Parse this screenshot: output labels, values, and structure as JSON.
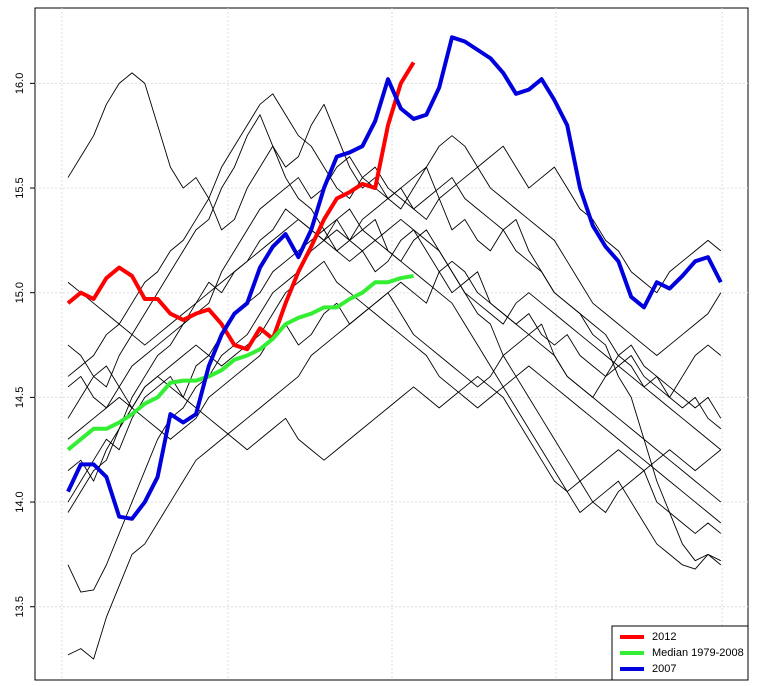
{
  "chart_data": {
    "type": "line",
    "ylim": [
      13.15,
      16.36
    ],
    "yticks": [
      13.5,
      {
        "value": 14,
        "label": "14.0"
      },
      14.5,
      {
        "value": 15,
        "label": "15.0"
      },
      15.5,
      {
        "value": 16,
        "label": "16.0"
      }
    ],
    "grid": true,
    "legend": "bottom-right",
    "series": [
      {
        "color": "#000000",
        "values": [
          15.55,
          15.65,
          15.75,
          15.9,
          16.0,
          16.05,
          16.0,
          15.8,
          15.6,
          15.5,
          15.55,
          15.45,
          15.3,
          15.35,
          15.5,
          15.6,
          15.7,
          15.55,
          15.45,
          15.4,
          15.3,
          15.35,
          15.25,
          15.2,
          15.1,
          15.15,
          15.25,
          15.3,
          15.2,
          15.1,
          15.0,
          15.05,
          15.1,
          14.95,
          14.9,
          14.85,
          14.9,
          14.8,
          14.75,
          14.8,
          14.7,
          14.65,
          14.6,
          14.7,
          14.65,
          14.55,
          14.6,
          14.5,
          14.45,
          14.5,
          14.4,
          14.35
        ]
      },
      {
        "color": "#000000",
        "values": [
          13.27,
          13.3,
          13.25,
          13.45,
          13.6,
          13.75,
          13.8,
          13.9,
          14.0,
          14.1,
          14.2,
          14.25,
          14.3,
          14.35,
          14.4,
          14.45,
          14.5,
          14.55,
          14.6,
          14.7,
          14.75,
          14.8,
          14.85,
          14.9,
          14.95,
          15.0,
          15.05,
          15.0,
          14.95,
          15.1,
          15.15,
          15.1,
          15.0,
          14.95,
          14.9,
          14.85,
          14.8,
          14.75,
          14.7,
          14.6,
          14.55,
          14.5,
          14.45,
          14.4,
          14.35,
          14.3,
          14.25,
          14.2,
          14.15,
          14.1,
          14.05,
          14.0
        ]
      },
      {
        "color": "#000000",
        "values": [
          13.7,
          13.57,
          13.58,
          13.7,
          13.85,
          14.0,
          14.15,
          14.3,
          14.4,
          14.45,
          14.55,
          14.6,
          14.7,
          14.75,
          14.8,
          14.9,
          15.0,
          15.05,
          15.1,
          15.2,
          15.25,
          15.3,
          15.25,
          15.35,
          15.4,
          15.45,
          15.5,
          15.4,
          15.45,
          15.5,
          15.55,
          15.45,
          15.4,
          15.35,
          15.3,
          15.2,
          15.15,
          15.1,
          15.0,
          14.95,
          14.9,
          14.8,
          14.75,
          14.6,
          14.5,
          14.3,
          14.1,
          13.95,
          13.8,
          13.72,
          13.75,
          13.7
        ]
      },
      {
        "color": "#000000",
        "values": [
          14.4,
          14.5,
          14.6,
          14.55,
          14.7,
          14.8,
          14.9,
          15.0,
          15.1,
          15.2,
          15.3,
          15.35,
          15.5,
          15.6,
          15.75,
          15.85,
          15.7,
          15.6,
          15.65,
          15.8,
          15.9,
          15.75,
          15.6,
          15.5,
          15.55,
          15.45,
          15.4,
          15.5,
          15.6,
          15.45,
          15.3,
          15.35,
          15.25,
          15.2,
          15.3,
          15.35,
          15.2,
          15.1,
          15.0,
          14.95,
          14.9,
          14.85,
          14.8,
          14.7,
          14.75,
          14.65,
          14.6,
          14.55,
          14.5,
          14.45,
          14.5,
          14.4
        ]
      },
      {
        "color": "#000000",
        "values": [
          14.0,
          14.1,
          14.2,
          14.3,
          14.25,
          14.4,
          14.5,
          14.55,
          14.6,
          14.5,
          14.65,
          14.7,
          14.8,
          14.9,
          14.95,
          15.0,
          15.1,
          15.15,
          15.2,
          15.25,
          15.3,
          15.2,
          15.25,
          15.3,
          15.35,
          15.2,
          15.15,
          15.25,
          15.3,
          15.2,
          15.1,
          15.0,
          14.9,
          14.85,
          14.7,
          14.6,
          14.5,
          14.4,
          14.3,
          14.2,
          14.1,
          14.0,
          13.95,
          14.05,
          14.1,
          14.15,
          14.0,
          13.95,
          13.9,
          13.85,
          13.9,
          13.85
        ]
      },
      {
        "color": "#000000",
        "values": [
          14.75,
          14.7,
          14.6,
          14.65,
          14.55,
          14.45,
          14.4,
          14.35,
          14.3,
          14.35,
          14.4,
          14.5,
          14.55,
          14.6,
          14.65,
          14.7,
          14.8,
          14.85,
          14.75,
          14.8,
          14.9,
          14.95,
          14.85,
          14.9,
          14.95,
          15.0,
          14.9,
          14.8,
          14.75,
          14.7,
          14.65,
          14.6,
          14.55,
          14.6,
          14.7,
          14.75,
          14.8,
          14.85,
          14.7,
          14.6,
          14.55,
          14.5,
          14.6,
          14.65,
          14.7,
          14.6,
          14.55,
          14.5,
          14.6,
          14.7,
          14.75,
          14.7
        ]
      },
      {
        "color": "#000000",
        "values": [
          14.6,
          14.65,
          14.7,
          14.8,
          14.85,
          14.95,
          15.05,
          15.1,
          15.2,
          15.25,
          15.35,
          15.45,
          15.6,
          15.7,
          15.8,
          15.9,
          15.95,
          15.85,
          15.75,
          15.7,
          15.6,
          15.5,
          15.45,
          15.55,
          15.6,
          15.5,
          15.45,
          15.4,
          15.35,
          15.45,
          15.5,
          15.55,
          15.6,
          15.65,
          15.7,
          15.6,
          15.5,
          15.55,
          15.6,
          15.5,
          15.4,
          15.35,
          15.25,
          15.2,
          15.1,
          15.05,
          15.0,
          15.1,
          15.15,
          15.2,
          15.25,
          15.2
        ]
      },
      {
        "color": "#000000",
        "values": [
          14.3,
          14.35,
          14.4,
          14.45,
          14.5,
          14.45,
          14.55,
          14.6,
          14.55,
          14.5,
          14.45,
          14.4,
          14.35,
          14.3,
          14.25,
          14.3,
          14.35,
          14.4,
          14.3,
          14.25,
          14.2,
          14.25,
          14.3,
          14.35,
          14.4,
          14.45,
          14.5,
          14.55,
          14.5,
          14.45,
          14.5,
          14.55,
          14.6,
          14.55,
          14.5,
          14.4,
          14.3,
          14.2,
          14.1,
          14.05,
          14.1,
          14.15,
          14.2,
          14.25,
          14.2,
          14.15,
          14.2,
          14.25,
          14.2,
          14.15,
          14.2,
          14.25
        ]
      },
      {
        "color": "#000000",
        "values": [
          13.95,
          14.05,
          14.15,
          14.2,
          14.35,
          14.5,
          14.6,
          14.7,
          14.75,
          14.85,
          14.95,
          15.05,
          15.0,
          15.1,
          15.15,
          15.25,
          15.3,
          15.4,
          15.35,
          15.3,
          15.25,
          15.35,
          15.4,
          15.3,
          15.25,
          15.2,
          15.15,
          15.1,
          15.05,
          15.0,
          14.95,
          14.85,
          14.75,
          14.65,
          14.55,
          14.45,
          14.35,
          14.25,
          14.15,
          14.05,
          13.95,
          14.0,
          14.05,
          14.1,
          14.0,
          13.9,
          13.8,
          13.75,
          13.7,
          13.68,
          13.75,
          13.72
        ]
      },
      {
        "color": "#000000",
        "values": [
          15.05,
          15.0,
          14.95,
          14.9,
          14.85,
          14.8,
          14.75,
          14.8,
          14.85,
          14.9,
          14.95,
          15.0,
          15.05,
          15.1,
          15.15,
          15.2,
          15.25,
          15.3,
          15.35,
          15.3,
          15.25,
          15.2,
          15.15,
          15.2,
          15.25,
          15.3,
          15.35,
          15.3,
          15.25,
          15.2,
          15.1,
          15.0,
          14.95,
          14.9,
          14.85,
          14.95,
          15.0,
          14.95,
          14.9,
          14.85,
          14.8,
          14.75,
          14.7,
          14.65,
          14.6,
          14.55,
          14.5,
          14.45,
          14.4,
          14.35,
          14.3,
          14.25
        ]
      },
      {
        "color": "#000000",
        "values": [
          14.55,
          14.6,
          14.5,
          14.45,
          14.55,
          14.65,
          14.7,
          14.75,
          14.8,
          14.85,
          14.9,
          14.95,
          15.1,
          15.2,
          15.3,
          15.4,
          15.45,
          15.5,
          15.55,
          15.45,
          15.5,
          15.6,
          15.65,
          15.55,
          15.5,
          15.45,
          15.5,
          15.55,
          15.6,
          15.7,
          15.75,
          15.7,
          15.6,
          15.5,
          15.45,
          15.4,
          15.35,
          15.3,
          15.25,
          15.15,
          15.05,
          14.95,
          14.9,
          14.85,
          14.8,
          14.75,
          14.7,
          14.75,
          14.8,
          14.85,
          14.9,
          15.0
        ]
      },
      {
        "color": "#000000",
        "values": [
          14.15,
          14.2,
          14.1,
          14.25,
          14.35,
          14.45,
          14.55,
          14.6,
          14.65,
          14.7,
          14.75,
          14.7,
          14.65,
          14.7,
          14.75,
          14.8,
          14.9,
          15.0,
          15.05,
          15.1,
          15.15,
          15.05,
          15.0,
          14.95,
          14.9,
          14.85,
          14.8,
          14.75,
          14.7,
          14.6,
          14.55,
          14.5,
          14.45,
          14.5,
          14.55,
          14.6,
          14.65,
          14.6,
          14.55,
          14.5,
          14.45,
          14.4,
          14.35,
          14.3,
          14.25,
          14.2,
          14.15,
          14.1,
          14.05,
          14.0,
          13.95,
          13.9
        ]
      },
      {
        "name": "2012",
        "color": "#ff0000",
        "values": [
          14.95,
          15.0,
          14.97,
          15.07,
          15.12,
          15.08,
          14.97,
          14.97,
          14.9,
          14.87,
          14.9,
          14.92,
          14.85,
          14.75,
          14.73,
          14.83,
          14.78,
          14.95,
          15.1,
          15.22,
          15.35,
          15.45,
          15.48,
          15.52,
          15.5,
          15.8,
          16.0,
          16.1
        ]
      },
      {
        "name": "Median 1979-2008",
        "color": "#33ee33",
        "values": [
          14.25,
          14.3,
          14.35,
          14.35,
          14.38,
          14.42,
          14.47,
          14.5,
          14.57,
          14.58,
          14.58,
          14.6,
          14.63,
          14.68,
          14.7,
          14.73,
          14.78,
          14.85,
          14.88,
          14.9,
          14.93,
          14.93,
          14.97,
          15.0,
          15.05,
          15.05,
          15.07,
          15.08
        ]
      },
      {
        "name": "2007",
        "color": "#0000dd",
        "values": [
          14.05,
          14.18,
          14.18,
          14.12,
          13.93,
          13.92,
          14.0,
          14.12,
          14.42,
          14.38,
          14.42,
          14.65,
          14.8,
          14.9,
          14.95,
          15.12,
          15.22,
          15.28,
          15.17,
          15.3,
          15.5,
          15.65,
          15.67,
          15.7,
          15.82,
          16.02,
          15.88,
          15.83,
          15.85,
          15.98,
          16.22,
          16.2,
          16.16,
          16.12,
          16.05,
          15.95,
          15.97,
          16.02,
          15.92,
          15.8,
          15.5,
          15.32,
          15.22,
          15.15,
          14.98,
          14.93,
          15.05,
          15.02,
          15.08,
          15.15,
          15.17,
          15.05
        ]
      }
    ]
  }
}
